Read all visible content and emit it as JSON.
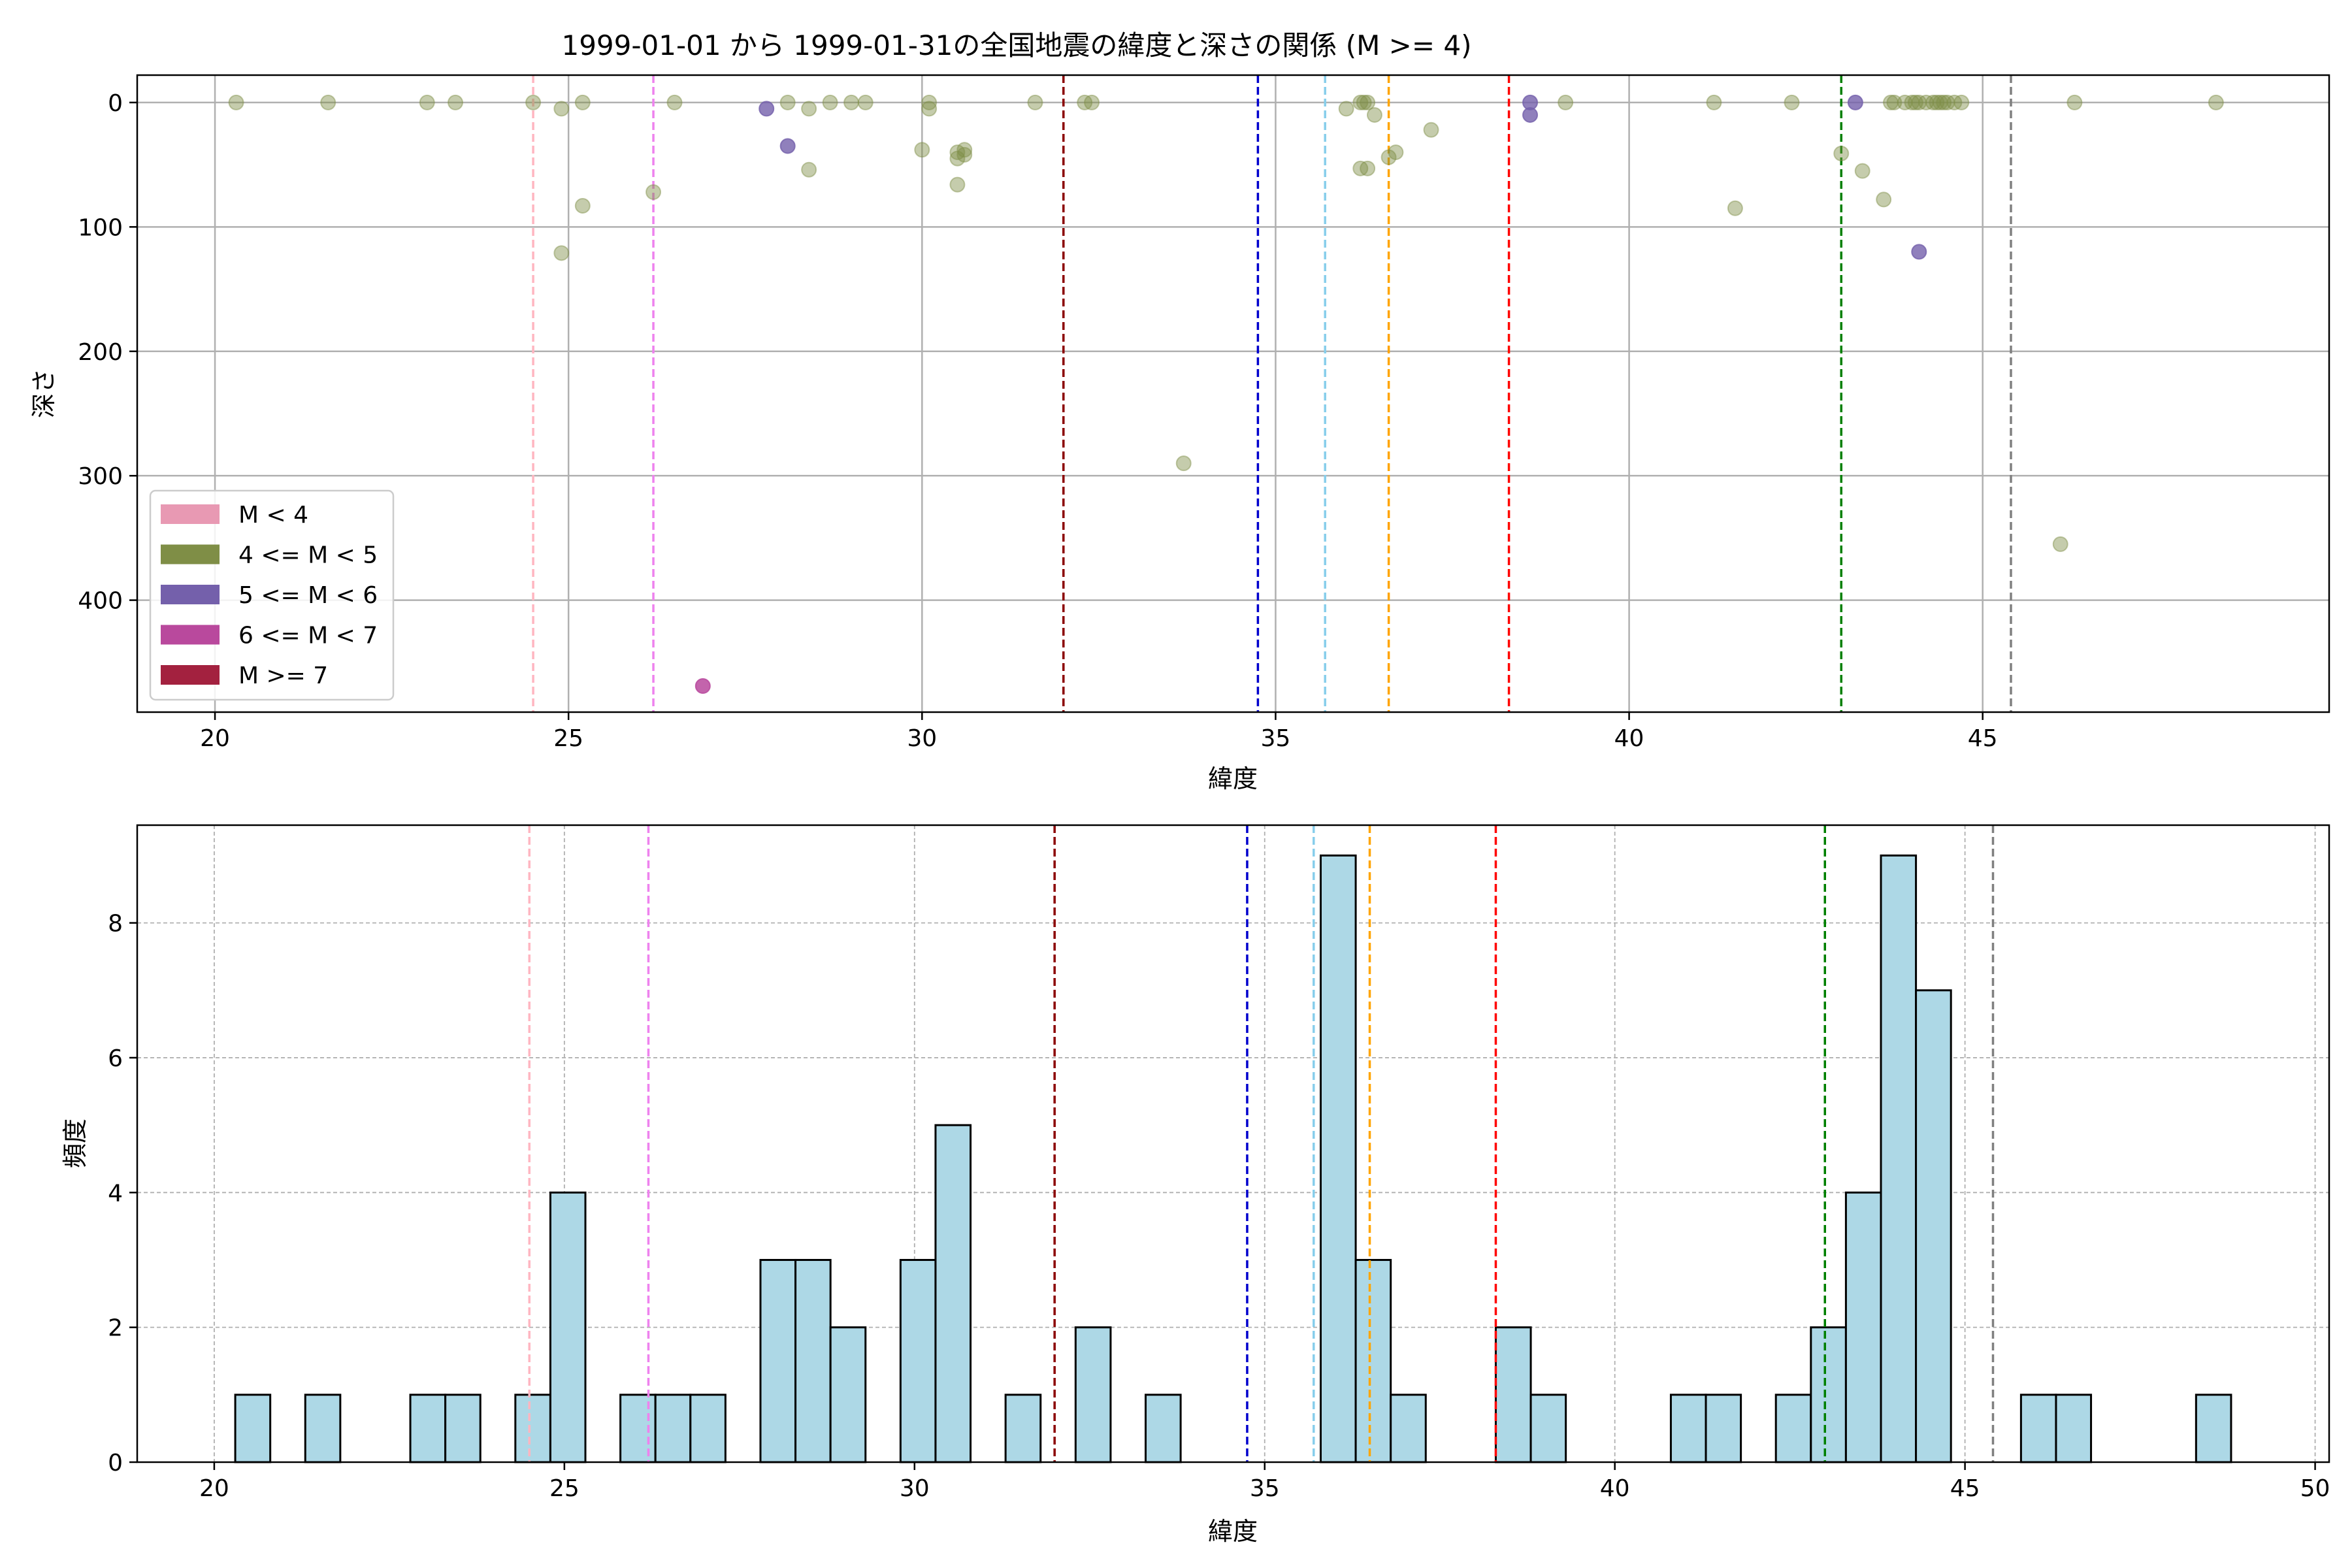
{
  "chart_data": [
    {
      "type": "scatter",
      "title": "1999-01-01 から 1999-01-31の全国地震の緯度と深さの関係 (M >= 4)",
      "xlabel": "緯度",
      "ylabel": "深さ",
      "xlim": [
        18.9,
        49.9
      ],
      "ylim": [
        490,
        -22
      ],
      "y_inverted": true,
      "grid": true,
      "x_ticks": [
        "20",
        "25",
        "30",
        "35",
        "40",
        "45"
      ],
      "y_ticks": [
        "0",
        "100",
        "200",
        "300",
        "400"
      ],
      "legend": {
        "placement": "lower-left",
        "entries": [
          {
            "label": "M < 4",
            "color": "#e899b3"
          },
          {
            "label": "4 <= M < 5",
            "color": "#7f8e46"
          },
          {
            "label": "5 <= M < 6",
            "color": "#7460ab"
          },
          {
            "label": "6 <= M < 7",
            "color": "#b9499d"
          },
          {
            "label": "M >= 7",
            "color": "#a3213f"
          }
        ]
      },
      "series": [
        {
          "name": "4 <= M < 5",
          "color": "#7f8e46",
          "alpha": 0.45,
          "points": [
            [
              20.3,
              0
            ],
            [
              21.6,
              0
            ],
            [
              23.0,
              0
            ],
            [
              23.4,
              0
            ],
            [
              24.5,
              0
            ],
            [
              24.9,
              5
            ],
            [
              25.2,
              0
            ],
            [
              24.9,
              121
            ],
            [
              25.2,
              83
            ],
            [
              26.2,
              72
            ],
            [
              26.5,
              0
            ],
            [
              28.1,
              0
            ],
            [
              28.4,
              5
            ],
            [
              28.4,
              54
            ],
            [
              28.7,
              0
            ],
            [
              29.0,
              0
            ],
            [
              29.2,
              0
            ],
            [
              30.0,
              38
            ],
            [
              30.1,
              0
            ],
            [
              30.1,
              5
            ],
            [
              30.5,
              40
            ],
            [
              30.5,
              45
            ],
            [
              30.5,
              66
            ],
            [
              30.6,
              38
            ],
            [
              30.6,
              42
            ],
            [
              31.6,
              0
            ],
            [
              32.3,
              0
            ],
            [
              32.4,
              0
            ],
            [
              33.7,
              290
            ],
            [
              36.0,
              5
            ],
            [
              36.2,
              0
            ],
            [
              36.25,
              0
            ],
            [
              36.3,
              0
            ],
            [
              36.2,
              53
            ],
            [
              36.3,
              53
            ],
            [
              36.4,
              10
            ],
            [
              36.6,
              44
            ],
            [
              36.7,
              40
            ],
            [
              37.2,
              22
            ],
            [
              39.1,
              0
            ],
            [
              41.2,
              0
            ],
            [
              41.5,
              85
            ],
            [
              42.3,
              0
            ],
            [
              43.0,
              41
            ],
            [
              43.3,
              55
            ],
            [
              43.6,
              78
            ],
            [
              43.7,
              0
            ],
            [
              43.75,
              0
            ],
            [
              43.9,
              0
            ],
            [
              44.0,
              0
            ],
            [
              44.05,
              0
            ],
            [
              44.1,
              0
            ],
            [
              44.2,
              0
            ],
            [
              44.3,
              0
            ],
            [
              44.35,
              0
            ],
            [
              44.4,
              0
            ],
            [
              44.45,
              0
            ],
            [
              44.5,
              0
            ],
            [
              44.6,
              0
            ],
            [
              44.7,
              0
            ],
            [
              46.1,
              355
            ],
            [
              46.3,
              0
            ],
            [
              48.3,
              0
            ]
          ]
        },
        {
          "name": "5 <= M < 6",
          "color": "#7460ab",
          "alpha": 0.8,
          "points": [
            [
              27.8,
              5
            ],
            [
              28.1,
              35
            ],
            [
              38.6,
              0
            ],
            [
              38.6,
              10
            ],
            [
              43.2,
              0
            ],
            [
              44.1,
              120
            ]
          ]
        },
        {
          "name": "6 <= M < 7",
          "color": "#b9499d",
          "alpha": 0.85,
          "points": [
            [
              26.9,
              469
            ]
          ]
        }
      ],
      "reference_lines": [
        {
          "x": 24.5,
          "color": "#ffb6c1"
        },
        {
          "x": 26.2,
          "color": "#ee82ee"
        },
        {
          "x": 32.0,
          "color": "#8b0000"
        },
        {
          "x": 34.75,
          "color": "#0000cd"
        },
        {
          "x": 35.7,
          "color": "#87ceeb"
        },
        {
          "x": 36.6,
          "color": "#ffa500"
        },
        {
          "x": 38.3,
          "color": "#ff0000"
        },
        {
          "x": 43.0,
          "color": "#008000"
        },
        {
          "x": 45.4,
          "color": "#808080"
        }
      ]
    },
    {
      "type": "bar",
      "title": "",
      "xlabel": "緯度",
      "ylabel": "頻度",
      "xlim": [
        18.9,
        50.2
      ],
      "ylim": [
        0,
        9.45
      ],
      "grid": true,
      "bar_color": "#add8e6",
      "bar_edge": "#000000",
      "x_ticks": [
        "20",
        "25",
        "30",
        "35",
        "40",
        "45",
        "50"
      ],
      "y_ticks": [
        "0",
        "2",
        "4",
        "6",
        "8"
      ],
      "bin_width": 0.5,
      "bins": [
        {
          "x0": 20.3,
          "value": 1
        },
        {
          "x0": 21.3,
          "value": 1
        },
        {
          "x0": 22.8,
          "value": 1
        },
        {
          "x0": 23.3,
          "value": 1
        },
        {
          "x0": 24.3,
          "value": 1
        },
        {
          "x0": 24.8,
          "value": 4
        },
        {
          "x0": 25.8,
          "value": 1
        },
        {
          "x0": 26.3,
          "value": 1
        },
        {
          "x0": 26.8,
          "value": 1
        },
        {
          "x0": 27.8,
          "value": 3
        },
        {
          "x0": 28.3,
          "value": 3
        },
        {
          "x0": 28.8,
          "value": 2
        },
        {
          "x0": 29.8,
          "value": 3
        },
        {
          "x0": 30.3,
          "value": 5
        },
        {
          "x0": 31.3,
          "value": 1
        },
        {
          "x0": 32.3,
          "value": 2
        },
        {
          "x0": 33.3,
          "value": 1
        },
        {
          "x0": 35.8,
          "value": 9
        },
        {
          "x0": 36.3,
          "value": 3
        },
        {
          "x0": 36.8,
          "value": 1
        },
        {
          "x0": 38.3,
          "value": 2
        },
        {
          "x0": 38.8,
          "value": 1
        },
        {
          "x0": 40.8,
          "value": 1
        },
        {
          "x0": 41.3,
          "value": 1
        },
        {
          "x0": 42.3,
          "value": 1
        },
        {
          "x0": 42.8,
          "value": 2
        },
        {
          "x0": 43.3,
          "value": 4
        },
        {
          "x0": 43.8,
          "value": 9
        },
        {
          "x0": 44.3,
          "value": 7
        },
        {
          "x0": 45.8,
          "value": 1
        },
        {
          "x0": 46.3,
          "value": 1
        },
        {
          "x0": 48.3,
          "value": 1
        }
      ],
      "reference_lines": [
        {
          "x": 24.5,
          "color": "#ffb6c1"
        },
        {
          "x": 26.2,
          "color": "#ee82ee"
        },
        {
          "x": 32.0,
          "color": "#8b0000"
        },
        {
          "x": 34.75,
          "color": "#0000cd"
        },
        {
          "x": 35.7,
          "color": "#87ceeb"
        },
        {
          "x": 36.5,
          "color": "#ffa500"
        },
        {
          "x": 38.3,
          "color": "#ff0000"
        },
        {
          "x": 43.0,
          "color": "#008000"
        },
        {
          "x": 45.4,
          "color": "#808080"
        }
      ]
    }
  ]
}
